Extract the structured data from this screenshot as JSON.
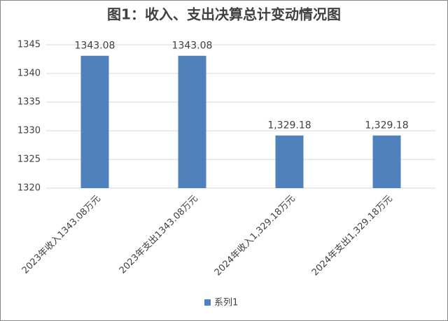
{
  "chart_data": {
    "type": "bar",
    "title": "图1：收入、支出决算总计变动情况图",
    "categories": [
      "2023年收入1343.08万元",
      "2023年支出1343.08万元",
      "2024年收入1,329.18万元",
      "2024年支出1,329.18万元"
    ],
    "series": [
      {
        "name": "系列1",
        "color": "#4f81bd",
        "values": [
          1343.08,
          1343.08,
          1329.18,
          1329.18
        ],
        "value_labels": [
          "1343.08",
          "1343.08",
          "1,329.18",
          "1,329.18"
        ]
      }
    ],
    "ylim": [
      1320,
      1345
    ],
    "yticks": [
      1320,
      1325,
      1330,
      1335,
      1340,
      1345
    ],
    "grid": true,
    "legend": "bottom"
  }
}
